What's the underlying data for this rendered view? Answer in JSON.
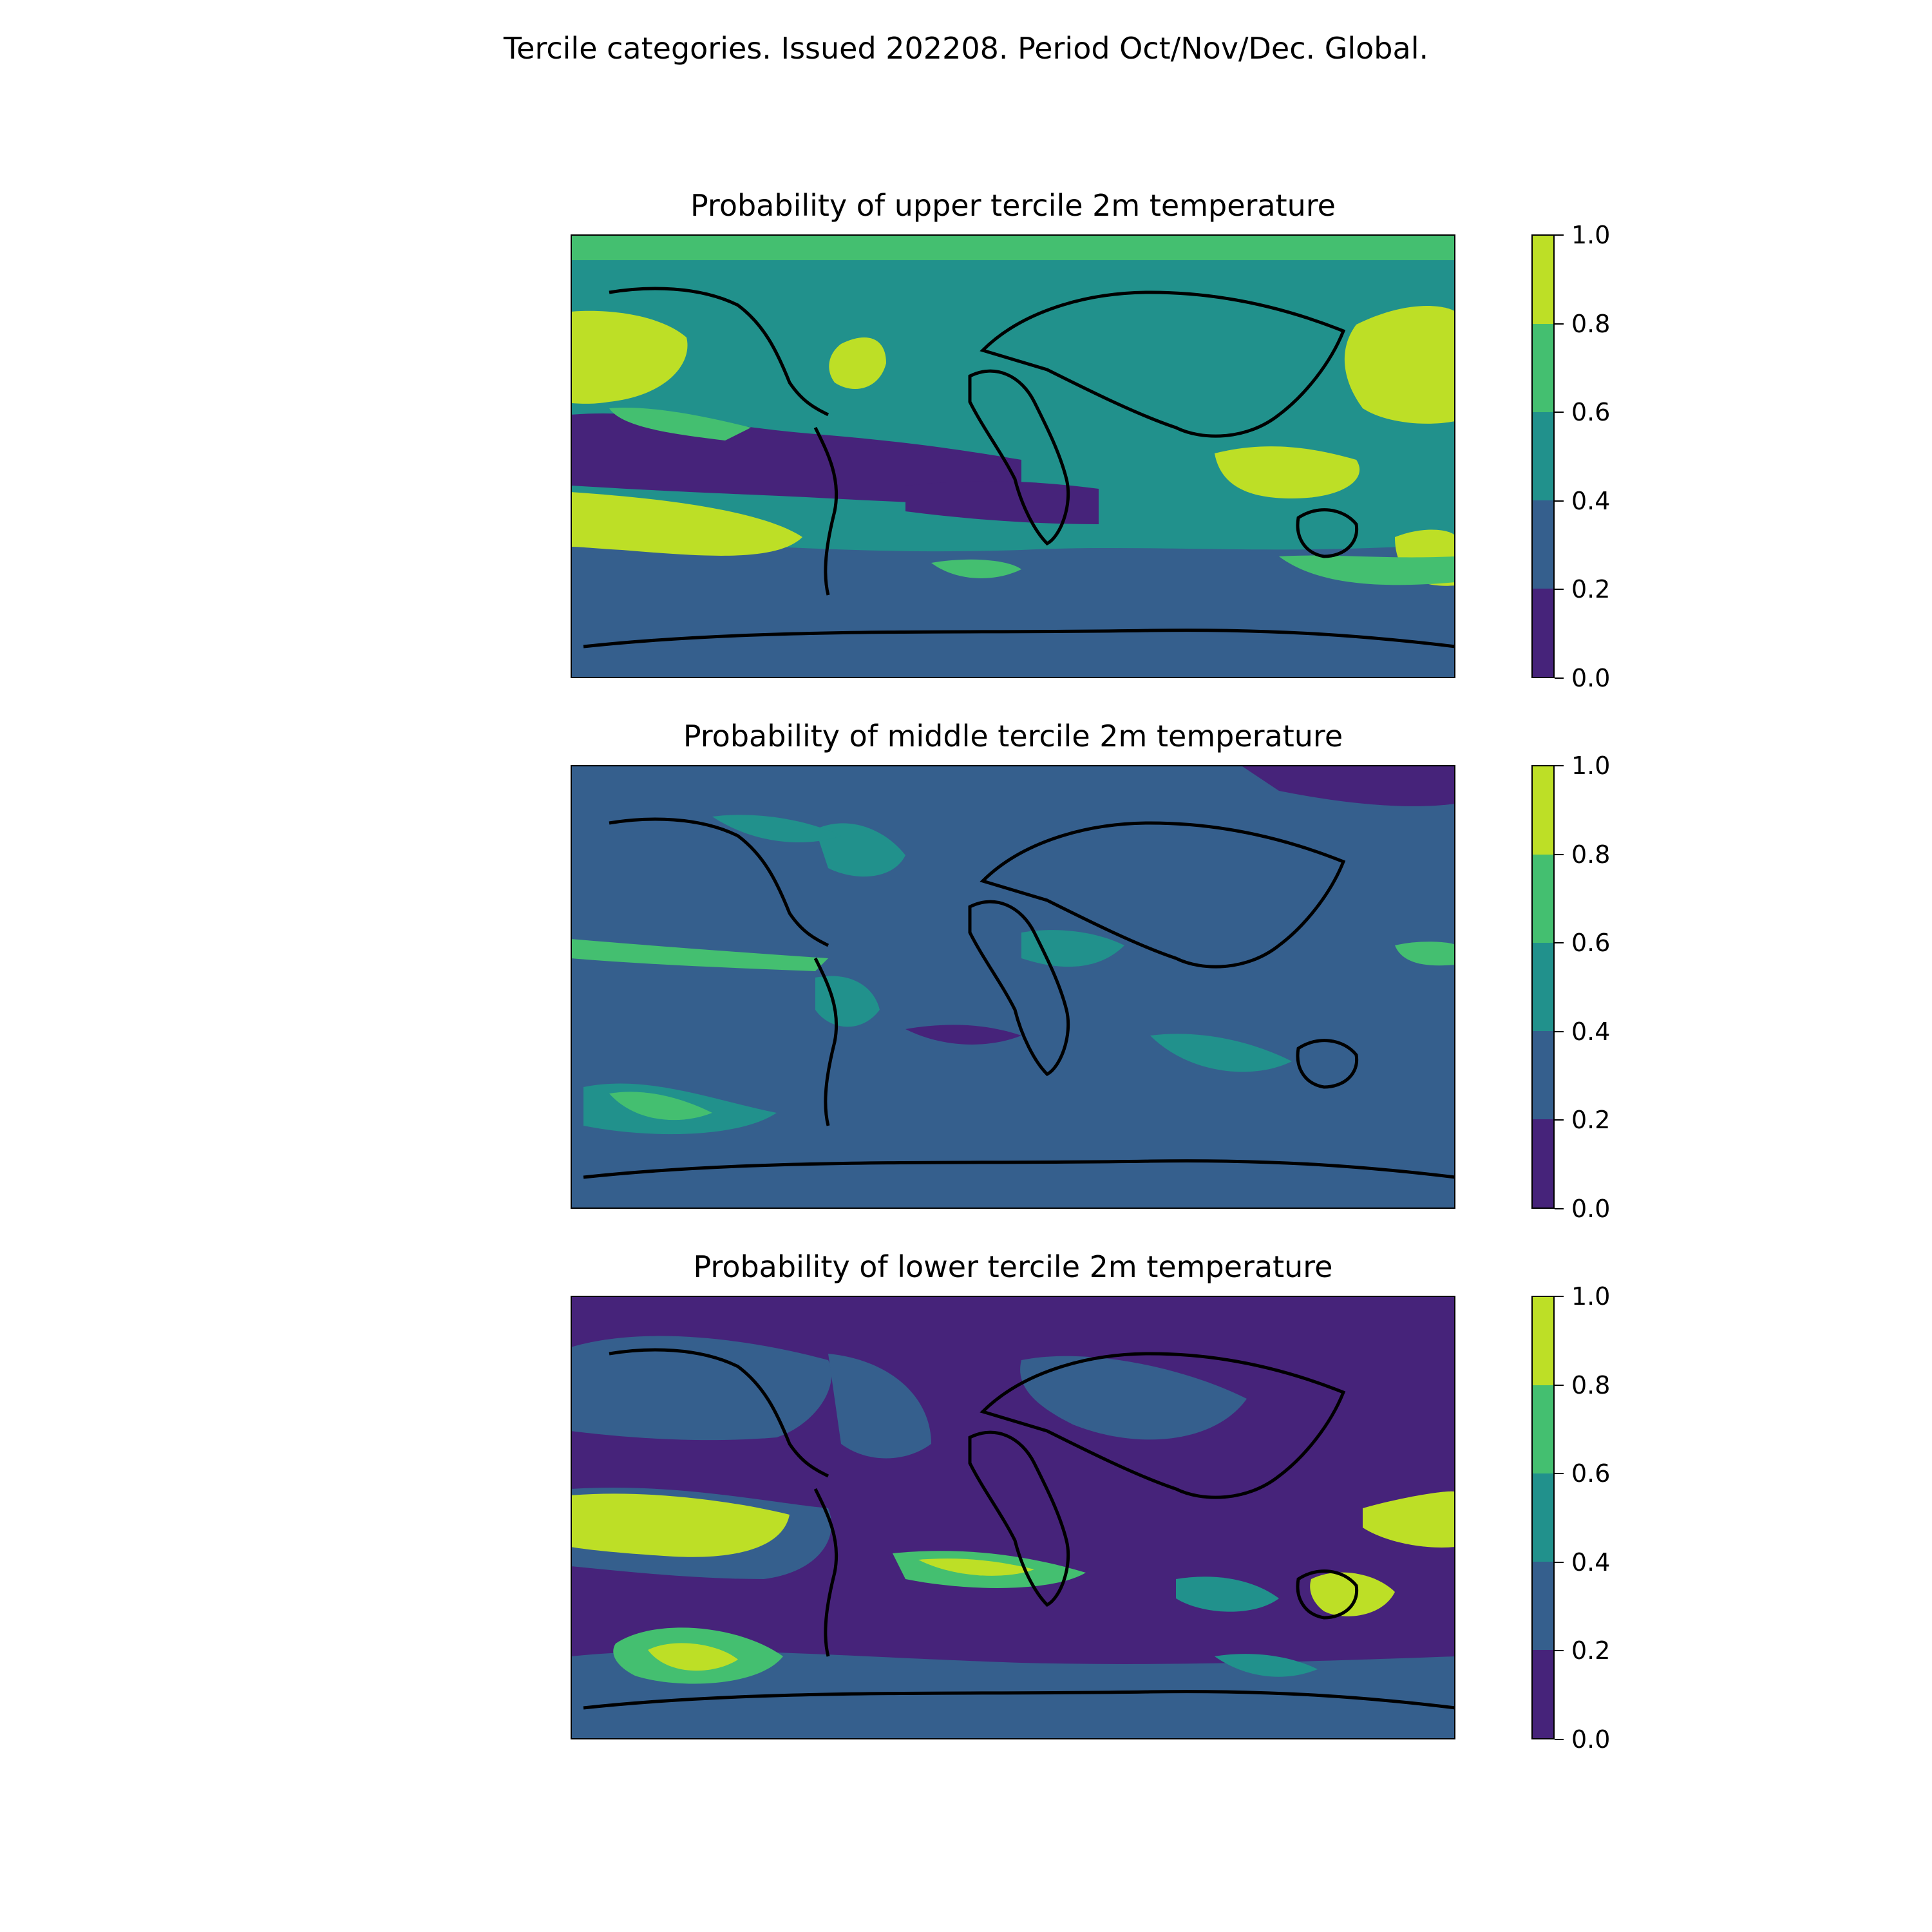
{
  "figure": {
    "suptitle": "Tercile categories. Issued 202208. Period Oct/Nov/Dec. Global."
  },
  "panels": [
    {
      "id": "upper",
      "title": "Probability of upper tercile 2m temperature",
      "dominant_level": "0.4-0.6"
    },
    {
      "id": "middle",
      "title": "Probability of middle tercile 2m temperature",
      "dominant_level": "0.2-0.4"
    },
    {
      "id": "lower",
      "title": "Probability of lower tercile 2m temperature",
      "dominant_level": "0.0-0.2"
    }
  ],
  "colorbar": {
    "ticks": [
      "0.0",
      "0.2",
      "0.4",
      "0.6",
      "0.8",
      "1.0"
    ],
    "levels": [
      0.0,
      0.2,
      0.4,
      0.6,
      0.8,
      1.0
    ],
    "colors": [
      "#46237a",
      "#355f8d",
      "#21918c",
      "#44bf70",
      "#bddf26"
    ]
  }
}
